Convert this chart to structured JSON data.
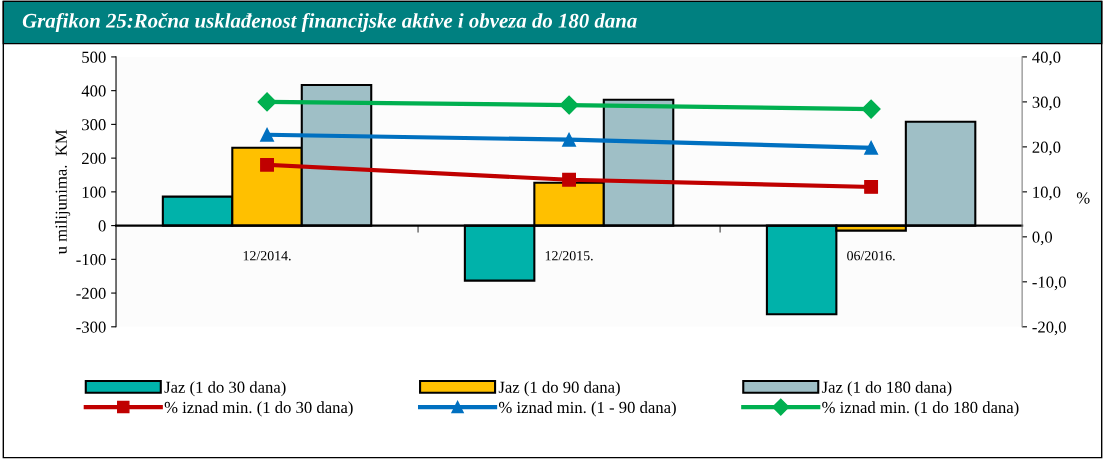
{
  "chart_data": {
    "type": "bar",
    "title": "Grafikon 25:Ročna usklađenost financijske aktive i obveza do 180 dana",
    "categories": [
      "12/2014.",
      "12/2015.",
      "06/2016."
    ],
    "ylabel": "u milijunima.  KM",
    "y2label": "%",
    "ylim": [
      -300,
      500
    ],
    "yticks": [
      -300,
      -200,
      -100,
      0,
      100,
      200,
      300,
      400,
      500
    ],
    "y2lim": [
      -20,
      40
    ],
    "y2ticks": [
      {
        "value": -20,
        "label": "-20,0"
      },
      {
        "value": -10,
        "label": "-10,0"
      },
      {
        "value": 0,
        "label": "0,0"
      },
      {
        "value": 10,
        "label": "10,0"
      },
      {
        "value": 20,
        "label": "20,0"
      },
      {
        "value": 30,
        "label": "30,0"
      },
      {
        "value": 40,
        "label": "40,0"
      }
    ],
    "legend": "bottom",
    "grid": false,
    "series": [
      {
        "name": "Jaz (1 do 30 dana)",
        "color": "#00b2aa",
        "values": [
          86,
          -163,
          -263
        ]
      },
      {
        "name": "Jaz (1 do 90 dana)",
        "color": "#ffc000",
        "values": [
          231,
          127,
          -15
        ]
      },
      {
        "name": "Jaz (1 do 180 dana)",
        "color": "#9fbfc6",
        "values": [
          417,
          373,
          308
        ]
      },
      {
        "name": "% iznad min. (1 do 30 dana)",
        "type": "line",
        "axis": "y2",
        "marker": "square",
        "color": "#c00000",
        "values": [
          16.0,
          12.7,
          11.1
        ]
      },
      {
        "name": "% iznad min. (1 - 90 dana)",
        "type": "line",
        "axis": "y2",
        "marker": "triangle",
        "color": "#0070c0",
        "values": [
          22.7,
          21.6,
          19.8
        ]
      },
      {
        "name": "% iznad min. (1 do 180 dana)",
        "type": "line",
        "axis": "y2",
        "marker": "diamond",
        "color": "#00b050",
        "values": [
          30.0,
          29.3,
          28.4
        ]
      }
    ]
  }
}
